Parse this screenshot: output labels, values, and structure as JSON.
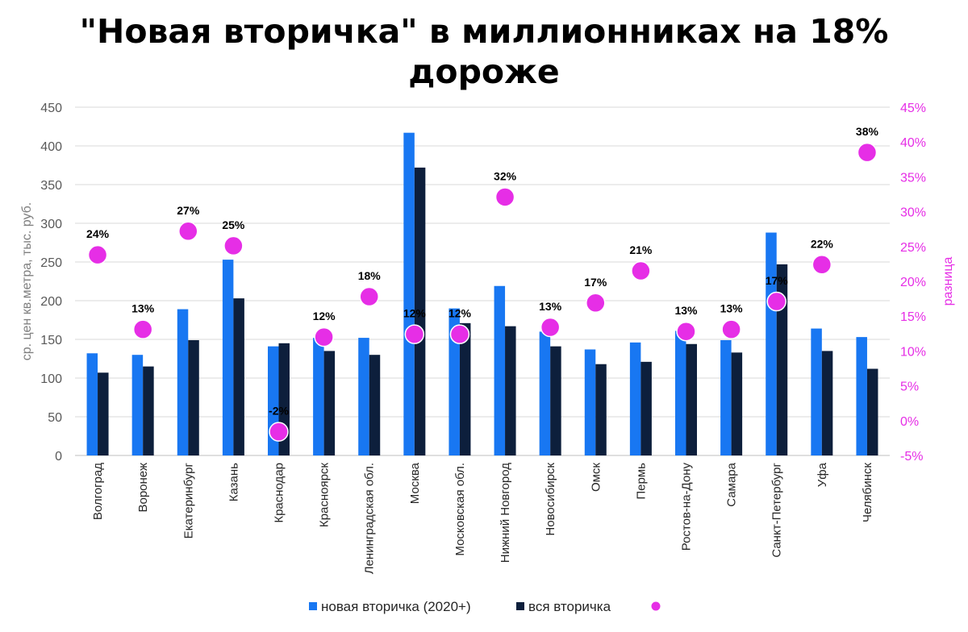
{
  "title_line1": "\"Новая вторичка\" в миллионниках на 18%",
  "title_line2": "дороже",
  "colors": {
    "new": "#1877f2",
    "all": "#0d1f3c",
    "diff": "#e62ee6"
  },
  "chart_data": {
    "type": "bar",
    "title": "\"Новая вторичка\" в миллионниках на 18% дороже",
    "ylabel": "ср. цен кв.метра, тыс. руб.",
    "y2label": "разница",
    "ylim": [
      0,
      450
    ],
    "y2lim": [
      -5,
      45
    ],
    "yticks": [
      "0",
      "50",
      "100",
      "150",
      "200",
      "250",
      "300",
      "350",
      "400",
      "450"
    ],
    "y2ticks": [
      "-5%",
      "0%",
      "5%",
      "10%",
      "15%",
      "20%",
      "25%",
      "30%",
      "35%",
      "40%",
      "45%"
    ],
    "categories": [
      "Волгоград",
      "Воронеж",
      "Екатеринбург",
      "Казань",
      "Краснодар",
      "Красноярск",
      "Ленинградская обл.",
      "Москва",
      "Московская обл.",
      "Нижний Новгород",
      "Новосибирск",
      "Омск",
      "Пермь",
      "Ростов-на-Дону",
      "Самара",
      "Санкт-Петербург",
      "Уфа",
      "Челябинск"
    ],
    "series": [
      {
        "name": "новая вторичка (2020+)",
        "type": "bar",
        "axis": "left",
        "values": [
          132,
          130,
          189,
          253,
          141,
          152,
          152,
          417,
          190,
          219,
          160,
          137,
          146,
          161,
          149,
          288,
          164,
          153
        ]
      },
      {
        "name": "вся вторичка",
        "type": "bar",
        "axis": "left",
        "values": [
          107,
          115,
          149,
          203,
          145,
          135,
          130,
          372,
          171,
          167,
          141,
          118,
          121,
          144,
          133,
          247,
          135,
          112
        ]
      },
      {
        "name": "",
        "type": "scatter",
        "axis": "right",
        "values": [
          24,
          13,
          27,
          25,
          -2,
          12,
          18,
          12,
          12,
          32,
          13,
          17,
          21,
          13,
          13,
          17,
          22,
          38
        ],
        "plot_values": [
          23.8,
          13.1,
          27.2,
          25.1,
          -1.6,
          12.0,
          17.8,
          12.4,
          12.4,
          32.1,
          13.4,
          16.9,
          21.5,
          12.8,
          13.1,
          17.1,
          22.4,
          38.5
        ],
        "labels": [
          "24%",
          "13%",
          "27%",
          "25%",
          "-2%",
          "12%",
          "18%",
          "12%",
          "12%",
          "32%",
          "13%",
          "17%",
          "21%",
          "13%",
          "13%",
          "17%",
          "22%",
          "38%"
        ]
      }
    ],
    "legend": [
      "новая вторичка (2020+)",
      "вся вторичка",
      ""
    ],
    "legend_position": "bottom",
    "grid": true
  }
}
